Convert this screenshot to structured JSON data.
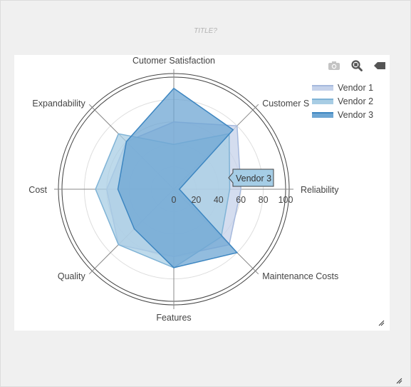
{
  "page": {
    "title": "TITLE?"
  },
  "modebar": {
    "icons": [
      "camera-icon",
      "zoom-icon",
      "tag-icon"
    ]
  },
  "tooltip": {
    "label": "Vendor 3"
  },
  "chart_data": {
    "type": "radar",
    "title": "TITLE?",
    "axes": [
      "Cutomer Satisfaction",
      "Customer Support",
      "Reliability",
      "Maintenance Costs",
      "Features",
      "Quality",
      "Cost",
      "Expandability"
    ],
    "axes_visible": [
      "Cutomer Satisfaction",
      "Customer Su",
      "Reliability",
      "Maintenance Costs",
      "Features",
      "Quality",
      "Cost",
      "Expandability"
    ],
    "radial_range": [
      0,
      100
    ],
    "radial_ticks": [
      0,
      20,
      40,
      60,
      80,
      100
    ],
    "grid": true,
    "legend_position": "top-right",
    "series": [
      {
        "name": "Vendor 1",
        "values": [
          60,
          80,
          60,
          70,
          60,
          70,
          60,
          60
        ],
        "fill": "#c5d2ea",
        "line": "#a6b9dd"
      },
      {
        "name": "Vendor 2",
        "values": [
          40,
          70,
          50,
          60,
          70,
          70,
          70,
          70
        ],
        "fill": "#a8cde4",
        "line": "#7fb3d6"
      },
      {
        "name": "Vendor 3",
        "values": [
          90,
          75,
          5,
          80,
          70,
          50,
          50,
          60
        ],
        "fill": "#6ea6d3",
        "line": "#3d86c1"
      }
    ]
  }
}
